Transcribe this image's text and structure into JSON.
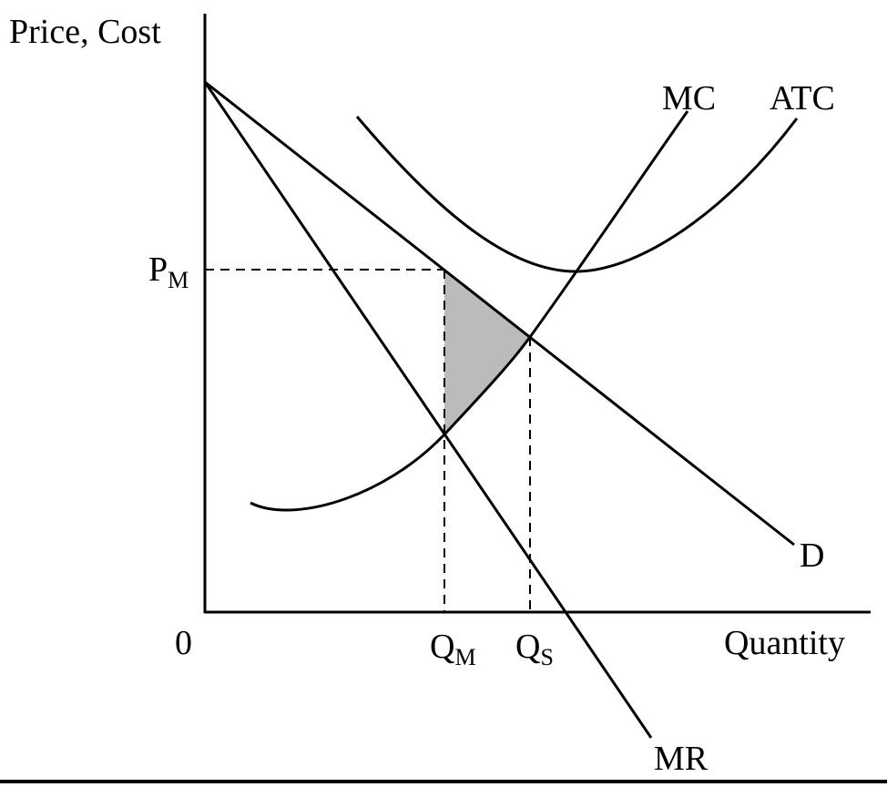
{
  "axes": {
    "y_label": "Price, Cost",
    "x_label": "Quantity",
    "origin": "0"
  },
  "curves": {
    "mc": "MC",
    "atc": "ATC",
    "demand": "D",
    "mr": "MR"
  },
  "markers": {
    "price": {
      "base": "P",
      "sub": "M"
    },
    "q_monopoly": {
      "base": "Q",
      "sub": "M"
    },
    "q_social": {
      "base": "Q",
      "sub": "S"
    }
  }
}
